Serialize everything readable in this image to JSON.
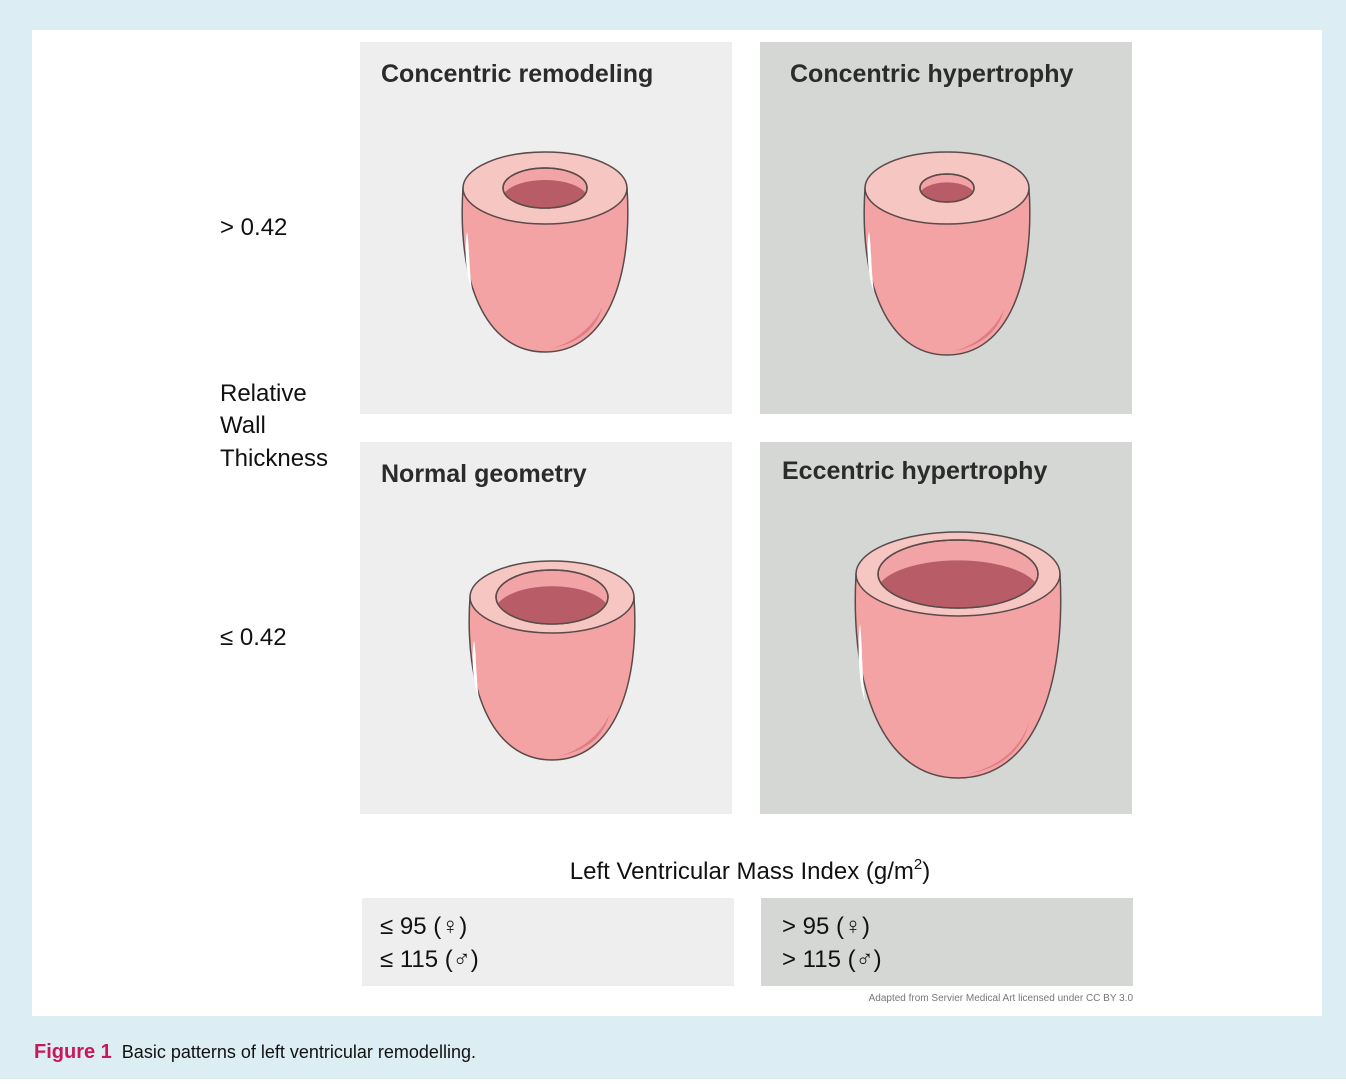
{
  "panels": [
    {
      "title": "Concentric remodeling"
    },
    {
      "title": "Concentric hypertrophy"
    },
    {
      "title": "Normal geometry"
    },
    {
      "title": "Eccentric hypertrophy"
    }
  ],
  "y_axis": {
    "upper": "> 0.42",
    "label_lines": [
      "Relative",
      "Wall",
      "Thickness"
    ],
    "lower": "≤ 0.42"
  },
  "x_axis": {
    "title": "Left Ventricular Mass Index (g/m",
    "superscript": "2",
    "title_end": ")",
    "ranges": [
      [
        "≤ 95 (♀)",
        "≤ 115 (♂)"
      ],
      [
        "> 95 (♀)",
        "> 115 (♂)"
      ]
    ]
  },
  "credit": "Adapted from Servier Medical Art licensed under CC BY 3.0",
  "caption": {
    "label": "Figure 1",
    "text": "Basic patterns of left ventricular remodelling."
  }
}
